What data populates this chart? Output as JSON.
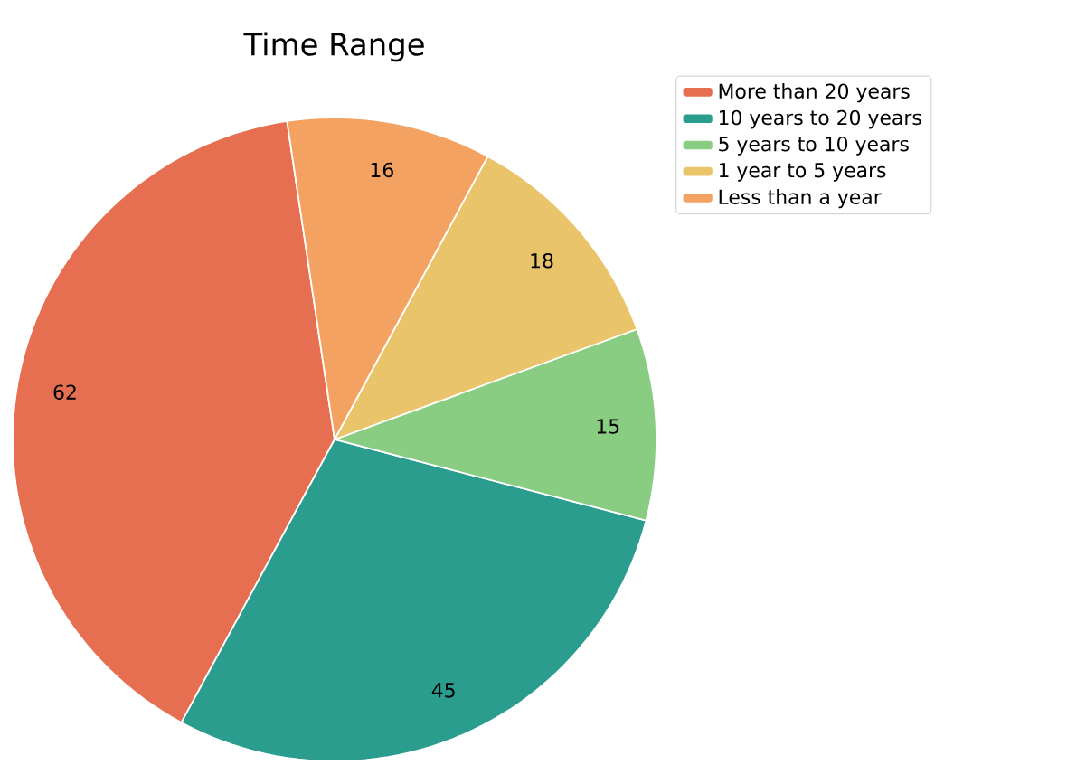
{
  "chart_data": {
    "type": "pie",
    "title": "Time Range",
    "categories": [
      "More than 20 years",
      "10 years to 20 years",
      "5 years to 10 years",
      "1 year to 5 years",
      "Less than a year"
    ],
    "values": [
      62,
      45,
      15,
      18,
      16
    ],
    "colors": [
      "#e76f51",
      "#2a9d8f",
      "#88cd81",
      "#e9c46b",
      "#f4a261"
    ],
    "data_labels": true,
    "legend": "top right"
  }
}
